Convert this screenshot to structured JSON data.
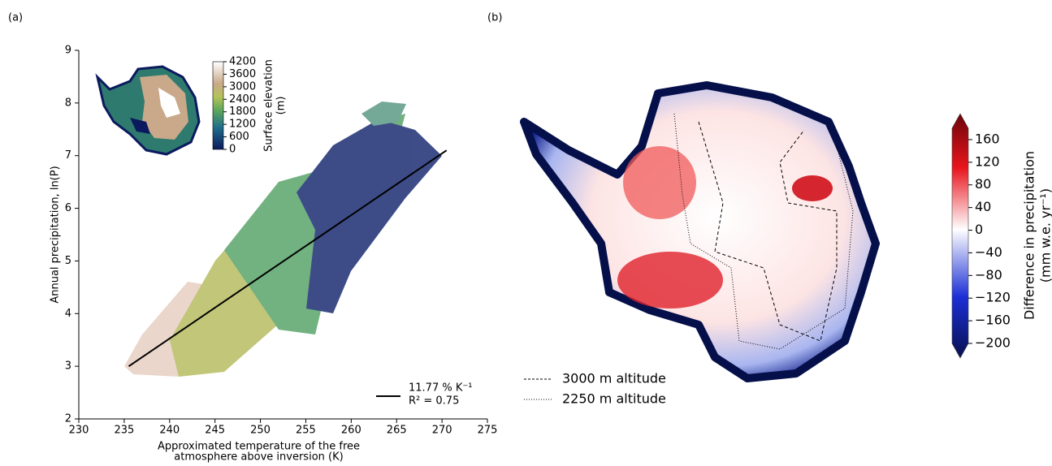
{
  "chart_data": [
    {
      "type": "scatter",
      "panel": "(a)",
      "xlabel": [
        "Approximated temperature of the free",
        "atmosphere above inversion (K)"
      ],
      "ylabel": "Annual precipitation, ln(P)",
      "xlim": [
        230,
        275
      ],
      "xticks": [
        230,
        235,
        240,
        245,
        250,
        255,
        260,
        265,
        270,
        275
      ],
      "ylim": [
        2,
        9
      ],
      "yticks": [
        2,
        3,
        4,
        5,
        6,
        7,
        8,
        9
      ],
      "series": [
        {
          "name": "11.77 % K⁻¹",
          "color": "#000000",
          "x": [
            235.5,
            270.5
          ],
          "values": [
            3.0,
            7.1
          ]
        }
      ],
      "annotation": "R² = 0.75",
      "inset_colorbar": {
        "label": [
          "Surface elevation",
          "(m)"
        ],
        "lim": [
          0,
          4200
        ],
        "ticks": [
          0,
          600,
          1200,
          1800,
          2400,
          3000,
          3600,
          4200
        ]
      }
    },
    {
      "type": "map",
      "panel": "(b)",
      "colorbar": {
        "label": [
          "Difference in precipitation",
          "(mm w.e. yr⁻¹)"
        ],
        "lim": [
          -200,
          180
        ],
        "ticks": [
          {
            "value": -200,
            "label": "−200"
          },
          {
            "value": -160,
            "label": "−160"
          },
          {
            "value": -120,
            "label": "−120"
          },
          {
            "value": -80,
            "label": "−80"
          },
          {
            "value": -40,
            "label": "−40"
          },
          0,
          40,
          80,
          120,
          160
        ]
      },
      "legend": [
        "3000 m altitude",
        "2250 m altitude"
      ]
    }
  ]
}
